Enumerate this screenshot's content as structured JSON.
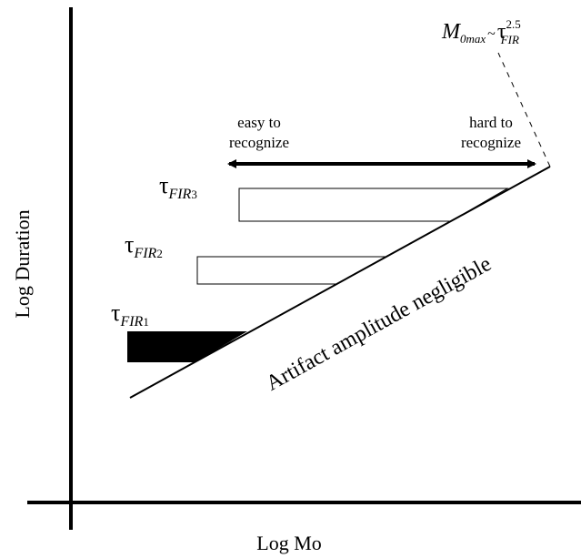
{
  "axes": {
    "y_label": "Log Duration",
    "x_label": "Log Mo"
  },
  "formula": {
    "lhs": "M",
    "lhs_sub": "0max",
    "op": "~",
    "rhs": "τ",
    "rhs_sub": "FIR",
    "rhs_sup": "2.5"
  },
  "arrow": {
    "left_line1": "easy to",
    "left_line2": "recognize",
    "right_line1": "hard to",
    "right_line2": "recognize"
  },
  "bars": [
    {
      "symbol": "τ",
      "sub": "FIR",
      "index": "1"
    },
    {
      "symbol": "τ",
      "sub": "FIR",
      "index": "2"
    },
    {
      "symbol": "τ",
      "sub": "FIR",
      "index": "3"
    }
  ],
  "diagonal_label": "Artifact amplitude negligible"
}
